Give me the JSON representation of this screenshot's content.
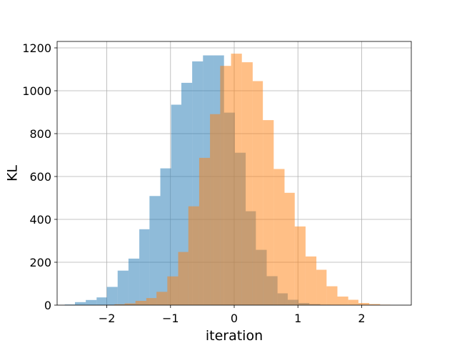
{
  "chart_data": {
    "type": "bar",
    "subtype": "overlapping-histogram",
    "title": "",
    "xlabel": "iteration",
    "ylabel": "KL",
    "xlim": [
      -2.78,
      2.78
    ],
    "ylim": [
      0,
      1230
    ],
    "grid": true,
    "legend": "none",
    "x_ticks": [
      -2,
      -1,
      0,
      1,
      2
    ],
    "y_ticks": [
      0,
      200,
      400,
      600,
      800,
      1000,
      1200
    ],
    "colors": {
      "series_blue": "#1f77b4",
      "series_orange": "#ff7f0e",
      "grid": "#b0b0b0",
      "axes": "#000000"
    },
    "alpha": 0.5,
    "series": [
      {
        "color": "series_blue",
        "bin_edges": [
          -2.66,
          -2.5,
          -2.33,
          -2.16,
          -2.0,
          -1.83,
          -1.66,
          -1.49,
          -1.33,
          -1.16,
          -0.99,
          -0.83,
          -0.66,
          -0.49,
          -0.32,
          -0.16,
          0.01,
          0.18,
          0.34,
          0.51,
          0.68,
          0.84,
          1.01,
          1.18,
          1.35,
          1.51,
          1.68,
          1.85,
          2.01
        ],
        "values": [
          3,
          14,
          24,
          36,
          85,
          161,
          217,
          354,
          509,
          638,
          935,
          1037,
          1137,
          1165,
          1165,
          898,
          711,
          438,
          258,
          135,
          55,
          25,
          10,
          5,
          2,
          1,
          0,
          0
        ]
      },
      {
        "color": "series_orange",
        "bin_edges": [
          -2.05,
          -1.88,
          -1.72,
          -1.55,
          -1.38,
          -1.22,
          -1.05,
          -0.88,
          -0.72,
          -0.55,
          -0.38,
          -0.22,
          -0.05,
          0.12,
          0.29,
          0.45,
          0.62,
          0.79,
          0.95,
          1.12,
          1.29,
          1.45,
          1.62,
          1.79,
          1.95,
          2.12,
          2.29,
          2.45
        ],
        "values": [
          1,
          4,
          8,
          20,
          33,
          62,
          134,
          248,
          461,
          687,
          891,
          1116,
          1173,
          1133,
          1045,
          863,
          635,
          524,
          367,
          227,
          165,
          88,
          40,
          25,
          10,
          5,
          2
        ]
      }
    ]
  }
}
